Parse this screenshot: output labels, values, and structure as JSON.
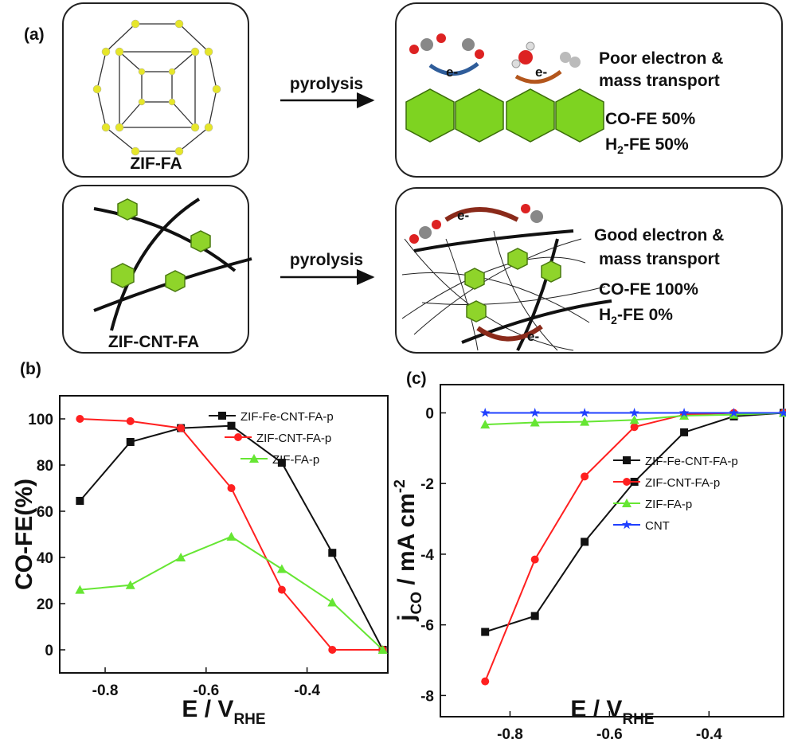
{
  "diagram": {
    "panel_a": "(a)",
    "top_left_label": "ZIF-FA",
    "bottom_left_label": "ZIF-CNT-FA",
    "arrow_top": "pyrolysis",
    "arrow_bottom": "pyrolysis",
    "electron_labels": [
      "e-",
      "e-",
      "e-",
      "e-"
    ],
    "top_right": {
      "line1": "Poor electron &",
      "line2": "mass transport",
      "co": "CO-FE  50%",
      "h2": {
        "text": "H",
        "sub": "2",
        "rest": "-FE   50%"
      }
    },
    "bottom_right": {
      "line1": "Good electron &",
      "line2": "mass transport",
      "co": "CO-FE  100%",
      "h2": {
        "text": "H",
        "sub": "2",
        "rest": "-FE    0%"
      }
    }
  },
  "chart_data": [
    {
      "type": "line",
      "panel": "(b)",
      "ylabel": "CO-FE(%)",
      "xlabel": {
        "text": "E / V",
        "sub": "RHE"
      },
      "x": [
        -0.85,
        -0.75,
        -0.65,
        -0.55,
        -0.45,
        -0.35,
        -0.25
      ],
      "xlim": [
        -0.89,
        -0.24
      ],
      "xticks": [
        -0.8,
        -0.6,
        -0.4
      ],
      "ylim": [
        -10,
        110
      ],
      "yticks": [
        0,
        20,
        40,
        60,
        80,
        100
      ],
      "legend": "upper right",
      "series": [
        {
          "name": "ZIF-Fe-CNT-FA-p",
          "color": "#111111",
          "marker": "square",
          "values": [
            64.5,
            90,
            96,
            97,
            81,
            42,
            0
          ]
        },
        {
          "name": "ZIF-CNT-FA-p",
          "color": "#ff2020",
          "marker": "circle",
          "values": [
            100,
            99,
            96,
            70,
            26,
            0,
            0
          ]
        },
        {
          "name": "ZIF-FA-p",
          "color": "#66e633",
          "marker": "triangle",
          "values": [
            26,
            28,
            40,
            49,
            35,
            20.5,
            0
          ]
        }
      ]
    },
    {
      "type": "line",
      "panel": "(c)",
      "ylabel": {
        "text": "j",
        "sub": "CO",
        "rest": " / mA cm",
        "sup": "-2"
      },
      "xlabel": {
        "text": "E / V",
        "sub": "RHE"
      },
      "x": [
        -0.85,
        -0.75,
        -0.65,
        -0.55,
        -0.45,
        -0.35,
        -0.25
      ],
      "xlim": [
        -0.94,
        -0.25
      ],
      "xticks": [
        -0.8,
        -0.6,
        -0.4
      ],
      "ylim": [
        -8.6,
        0.8
      ],
      "yticks": [
        -8,
        -6,
        -4,
        -2,
        0
      ],
      "legend": "lower right",
      "series": [
        {
          "name": "ZIF-Fe-CNT-FA-p",
          "color": "#111111",
          "marker": "square",
          "values": [
            -6.2,
            -5.75,
            -3.65,
            -1.95,
            -0.55,
            -0.1,
            0
          ]
        },
        {
          "name": "ZIF-CNT-FA-p",
          "color": "#ff2020",
          "marker": "circle",
          "values": [
            -7.6,
            -4.15,
            -1.8,
            -0.4,
            -0.05,
            0,
            0
          ]
        },
        {
          "name": "ZIF-FA-p",
          "color": "#66e633",
          "marker": "triangle",
          "values": [
            -0.33,
            -0.27,
            -0.25,
            -0.2,
            -0.08,
            -0.05,
            0
          ]
        },
        {
          "name": "CNT",
          "color": "#2040ff",
          "marker": "star",
          "values": [
            0,
            0,
            0,
            0,
            0,
            0,
            0
          ]
        }
      ]
    }
  ]
}
